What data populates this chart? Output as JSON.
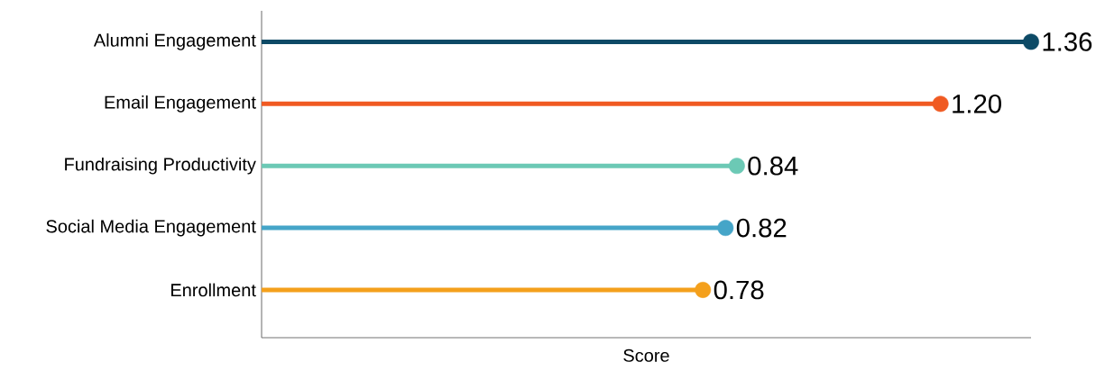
{
  "chart_data": {
    "type": "lollipop",
    "orientation": "horizontal",
    "xlabel": "Score",
    "categories": [
      "Alumni Engagement",
      "Email Engagement",
      "Fundraising Productivity",
      "Social Media Engagement",
      "Enrollment"
    ],
    "values": [
      1.36,
      1.2,
      0.84,
      0.82,
      0.78
    ],
    "value_labels": [
      "1.36",
      "1.20",
      "0.84",
      "0.82",
      "0.78"
    ],
    "colors": [
      "#0d4a66",
      "#f05a22",
      "#6cc9b5",
      "#45a5c8",
      "#f4a01c"
    ],
    "xlim": [
      0,
      1.36
    ],
    "tick_labels": "y",
    "marker": "circle"
  }
}
